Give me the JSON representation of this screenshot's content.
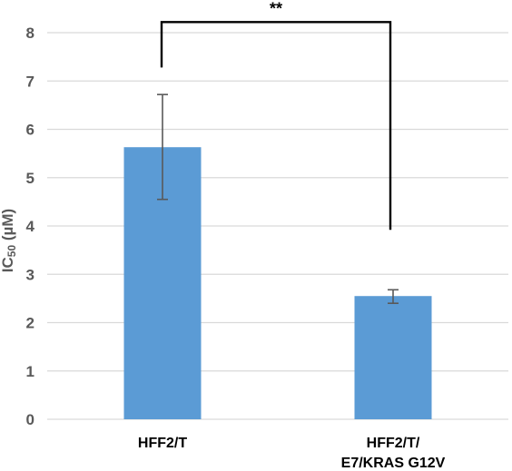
{
  "chart_data": {
    "type": "bar",
    "categories": [
      {
        "lines": [
          "HFF2/T"
        ]
      },
      {
        "lines": [
          "HFF2/T/",
          "E7/KRAS G12V"
        ]
      }
    ],
    "values": [
      5.63,
      2.55
    ],
    "error_low": [
      4.55,
      2.4
    ],
    "error_high": [
      6.72,
      2.68
    ],
    "ylabel": {
      "main": "IC",
      "sub": "50",
      "unit": " (µM)"
    },
    "ylim": [
      0,
      8
    ],
    "yticks": [
      0,
      1,
      2,
      3,
      4,
      5,
      6,
      7,
      8
    ],
    "grid": true,
    "bar_color": "#5b9bd5",
    "grid_color": "#d9d9d9",
    "error_color": "#595959",
    "significance": {
      "label": "**",
      "from": 0,
      "to": 1,
      "left_bottom": 7.28,
      "right_bottom": 3.92,
      "top": 8.22
    }
  }
}
